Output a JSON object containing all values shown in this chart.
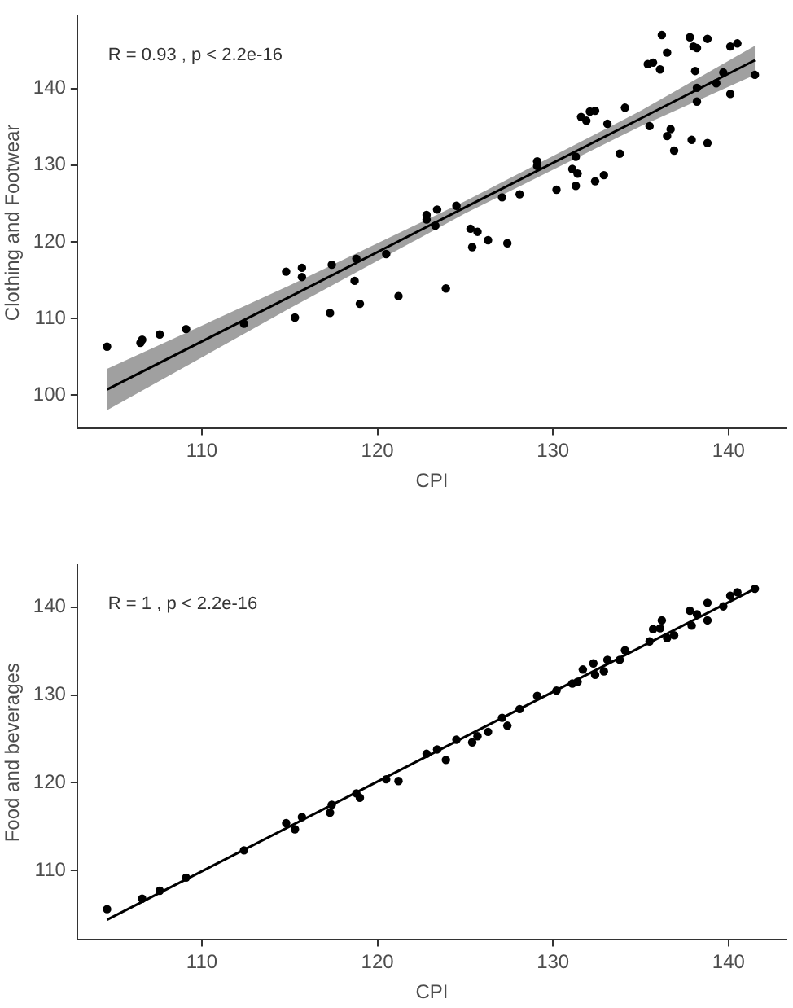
{
  "chart_data": [
    {
      "type": "scatter",
      "xlabel": "CPI",
      "ylabel": "Clothing and Footwear",
      "annotations": [
        "R = 0.93 , p < 2.2e-16"
      ],
      "xlim": [
        102.9,
        143.3
      ],
      "xticks": [
        110,
        120,
        130,
        140
      ],
      "ylim": [
        95.6,
        149.4
      ],
      "yticks": [
        100,
        110,
        120,
        130,
        140
      ],
      "series": [
        {
          "type": "scatter",
          "color": "#000000",
          "marker": "circle",
          "x": [
            136.2,
            135.7,
            135.4,
            136.1,
            136.5,
            137.8,
            138.0,
            138.2,
            138.8,
            140.1,
            140.5,
            138.1,
            138.2,
            138.2,
            141.5,
            139.7,
            139.3,
            140.1,
            135.5,
            136.7,
            136.5,
            136.9,
            137.9,
            138.8,
            134.1,
            133.8,
            133.1,
            131.6,
            131.9,
            132.1,
            132.4,
            131.3,
            131.1,
            131.4,
            131.3,
            132.4,
            132.9,
            130.2,
            129.1,
            129.1,
            128.1,
            127.1,
            124.5,
            123.4,
            122.8,
            122.8,
            123.3,
            125.3,
            125.7,
            126.3,
            125.4,
            127.4,
            123.9,
            120.5,
            121.2,
            118.8,
            118.7,
            119.0,
            117.4,
            117.3,
            115.7,
            115.7,
            114.8,
            115.3,
            112.4,
            109.1,
            107.6,
            106.6,
            106.5,
            104.6
          ],
          "values": [
            147.0,
            143.4,
            143.2,
            142.5,
            144.7,
            146.7,
            145.5,
            145.3,
            146.5,
            145.5,
            145.9,
            142.3,
            140.1,
            138.3,
            141.8,
            142.1,
            140.7,
            139.3,
            135.1,
            134.7,
            133.8,
            131.9,
            133.3,
            132.9,
            137.5,
            131.5,
            135.4,
            136.3,
            135.8,
            137.0,
            137.1,
            131.1,
            129.5,
            128.9,
            127.3,
            127.9,
            128.7,
            126.8,
            130.5,
            129.9,
            126.2,
            125.8,
            124.7,
            124.2,
            123.5,
            122.9,
            122.1,
            121.7,
            121.3,
            120.2,
            119.3,
            119.8,
            113.9,
            118.4,
            112.9,
            117.8,
            114.9,
            111.9,
            117.0,
            110.7,
            116.6,
            115.4,
            116.1,
            110.1,
            109.3,
            108.6,
            107.9,
            107.2,
            106.8,
            106.3
          ]
        },
        {
          "type": "line",
          "color": "#000000",
          "x": [
            104.6,
            115,
            125,
            135,
            141.5
          ],
          "values": [
            100.7,
            112.8,
            124.5,
            136.1,
            143.7
          ],
          "lower": [
            98.0,
            111.3,
            123.7,
            135.1,
            141.8
          ],
          "upper": [
            103.4,
            114.3,
            125.3,
            137.1,
            145.6
          ]
        }
      ]
    },
    {
      "type": "scatter",
      "xlabel": "CPI",
      "ylabel": "Food and beverages",
      "annotations": [
        "R = 1 , p < 2.2e-16"
      ],
      "xlim": [
        102.9,
        143.3
      ],
      "xticks": [
        110,
        120,
        130,
        140
      ],
      "ylim": [
        102.1,
        144.8
      ],
      "yticks": [
        110,
        120,
        130,
        140
      ],
      "series": [
        {
          "type": "scatter",
          "color": "#000000",
          "marker": "circle",
          "x": [
            104.6,
            106.6,
            107.6,
            109.1,
            112.4,
            114.8,
            115.3,
            115.7,
            117.4,
            117.3,
            118.8,
            119.0,
            120.5,
            121.2,
            122.8,
            123.4,
            123.9,
            124.5,
            125.4,
            125.7,
            126.3,
            127.4,
            127.1,
            128.1,
            129.1,
            130.2,
            131.1,
            131.4,
            131.7,
            132.3,
            132.4,
            132.9,
            133.1,
            133.8,
            134.1,
            135.5,
            135.7,
            136.1,
            136.2,
            136.5,
            136.9,
            137.8,
            137.9,
            138.2,
            138.8,
            138.8,
            139.7,
            140.1,
            140.5,
            141.5
          ],
          "values": [
            105.6,
            106.8,
            107.7,
            109.2,
            112.3,
            115.4,
            114.7,
            116.1,
            117.5,
            116.6,
            118.8,
            118.3,
            120.4,
            120.2,
            123.3,
            123.8,
            122.6,
            124.9,
            124.6,
            125.3,
            125.8,
            126.5,
            127.4,
            128.4,
            129.9,
            130.5,
            131.3,
            131.5,
            132.9,
            133.6,
            132.3,
            132.7,
            134.0,
            134.0,
            135.1,
            136.1,
            137.5,
            137.6,
            138.5,
            136.5,
            136.8,
            139.6,
            137.9,
            139.2,
            138.5,
            140.5,
            140.1,
            141.3,
            141.7,
            142.1
          ]
        },
        {
          "type": "line",
          "color": "#000000",
          "x": [
            104.6,
            141.5
          ],
          "values": [
            104.4,
            142.1
          ]
        }
      ]
    }
  ]
}
